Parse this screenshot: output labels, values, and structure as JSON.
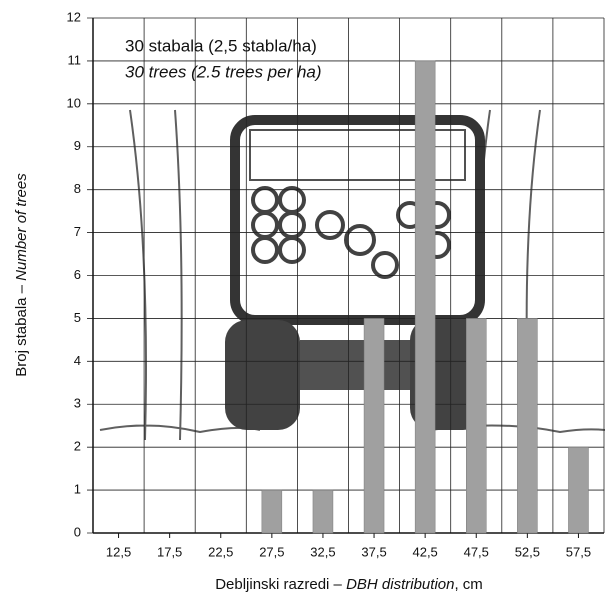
{
  "chart_data": {
    "type": "bar",
    "annotations": [
      "30 stabala (2,5 stabla/ha)",
      "30 trees (2.5 trees per ha)"
    ],
    "y_label": [
      "Broj stabala – ",
      "Number of trees"
    ],
    "x_label": [
      "Debljinski razredi – ",
      "DBH distribution",
      ", cm"
    ],
    "categories": [
      "12,5",
      "17,5",
      "22,5",
      "27,5",
      "32,5",
      "37,5",
      "42,5",
      "47,5",
      "52,5",
      "57,5"
    ],
    "values": [
      0,
      0,
      0,
      1,
      1,
      5,
      11,
      5,
      5,
      2
    ],
    "color": "#a0a0a0",
    "ylim": [
      0,
      12
    ],
    "yticks": [
      0,
      1,
      2,
      3,
      4,
      5,
      6,
      7,
      8,
      9,
      10,
      11,
      12
    ],
    "grid": true
  }
}
